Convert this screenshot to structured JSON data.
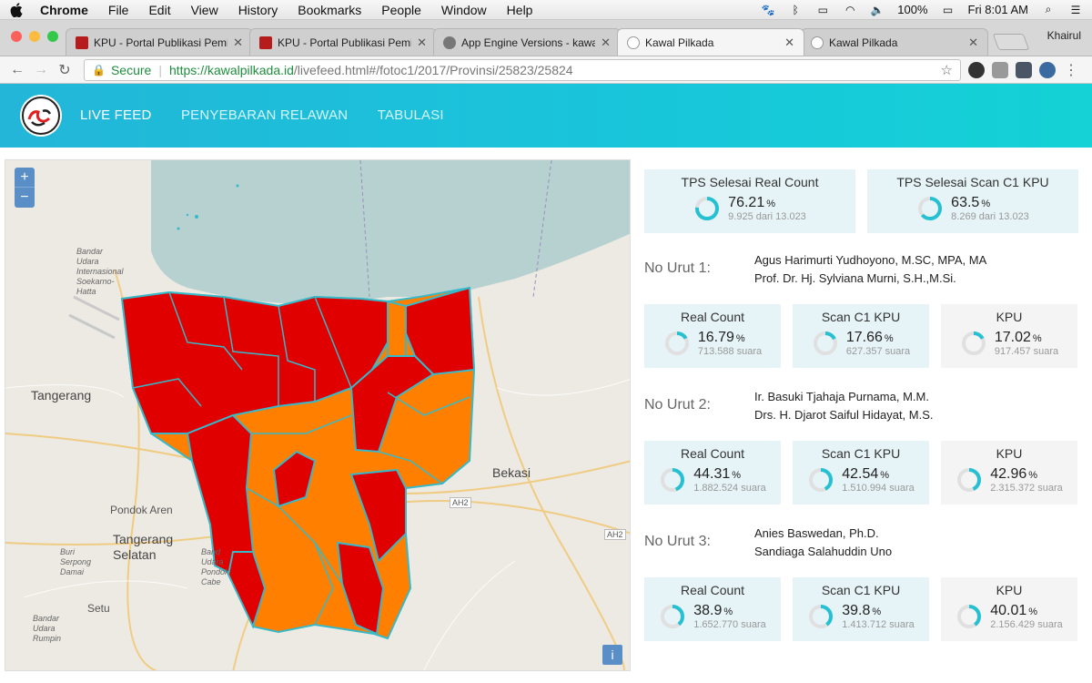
{
  "menubar": {
    "app_name": "Chrome",
    "items": [
      "File",
      "Edit",
      "View",
      "History",
      "Bookmarks",
      "People",
      "Window",
      "Help"
    ],
    "battery": "100%",
    "clock": "Fri 8:01 AM"
  },
  "browser": {
    "tabs": [
      {
        "label": "KPU - Portal Publikasi Pemilih"
      },
      {
        "label": "KPU - Portal Publikasi Pemilih"
      },
      {
        "label": "App Engine Versions - kawalp"
      },
      {
        "label": "Kawal Pilkada"
      },
      {
        "label": "Kawal Pilkada"
      }
    ],
    "profile_name": "Khairul",
    "secure_label": "Secure",
    "url_host": "https://kawalpilkada.id",
    "url_rest": "/livefeed.html#/fotoc1/2017/Provinsi/25823/25824"
  },
  "site": {
    "nav": [
      "LIVE FEED",
      "PENYEBARAN RELAWAN",
      "TABULASI"
    ]
  },
  "map": {
    "zoom_in": "+",
    "zoom_out": "−",
    "info": "i",
    "region_colors": {
      "candidate_1": "#e00000",
      "candidate_2": "#ff8000",
      "border": "#36b9c9",
      "water": "#b7d0d0"
    },
    "labels": {
      "tangerang": "Tangerang",
      "bekasi": "Bekasi",
      "pondok_aren": "Pondok Aren",
      "tangerang_selatan": "Tangerang\nSelatan",
      "airport": "Bandar\nUdara\nInternasional\nSoekarno-\nHatta",
      "setu": "Setu",
      "serpong": "Buri\nSerpong\nDamai",
      "bandara_pondok": "Band\nUdara\nPondok\nCabe",
      "bandara_rumpin": "Bandar\nUdara\nRumpin",
      "road_ah2": "AH2",
      "road_ah2_b": "AH2"
    }
  },
  "summary": {
    "real_count": {
      "title": "TPS Selesai Real Count",
      "value": "76.21",
      "unit": "%",
      "sub": "9.925 dari 13.023",
      "fraction": 0.7621
    },
    "scan_c1": {
      "title": "TPS Selesai Scan C1 KPU",
      "value": "63.5",
      "unit": "%",
      "sub": "8.269 dari 13.023",
      "fraction": 0.635
    }
  },
  "candidates": [
    {
      "no_label": "No Urut 1:",
      "names": [
        "Agus Harimurti Yudhoyono, M.SC, MPA, MA",
        "Prof. Dr. Hj. Sylviana Murni, S.H.,M.Si."
      ],
      "stats": [
        {
          "title": "Real Count",
          "value": "16.79",
          "unit": "%",
          "sub": "713.588 suara",
          "fraction": 0.1679
        },
        {
          "title": "Scan C1 KPU",
          "value": "17.66",
          "unit": "%",
          "sub": "627.357 suara",
          "fraction": 0.1766
        },
        {
          "title": "KPU",
          "value": "17.02",
          "unit": "%",
          "sub": "917.457 suara",
          "fraction": 0.1702
        }
      ]
    },
    {
      "no_label": "No Urut 2:",
      "names": [
        "Ir. Basuki Tjahaja Purnama, M.M.",
        "Drs. H. Djarot Saiful Hidayat, M.S."
      ],
      "stats": [
        {
          "title": "Real Count",
          "value": "44.31",
          "unit": "%",
          "sub": "1.882.524 suara",
          "fraction": 0.4431
        },
        {
          "title": "Scan C1 KPU",
          "value": "42.54",
          "unit": "%",
          "sub": "1.510.994 suara",
          "fraction": 0.4254
        },
        {
          "title": "KPU",
          "value": "42.96",
          "unit": "%",
          "sub": "2.315.372 suara",
          "fraction": 0.4296
        }
      ]
    },
    {
      "no_label": "No Urut 3:",
      "names": [
        "Anies Baswedan, Ph.D.",
        "Sandiaga Salahuddin Uno"
      ],
      "stats": [
        {
          "title": "Real Count",
          "value": "38.9",
          "unit": "%",
          "sub": "1.652.770 suara",
          "fraction": 0.389
        },
        {
          "title": "Scan C1 KPU",
          "value": "39.8",
          "unit": "%",
          "sub": "1.413.712 suara",
          "fraction": 0.398
        },
        {
          "title": "KPU",
          "value": "40.01",
          "unit": "%",
          "sub": "2.156.429 suara",
          "fraction": 0.4001
        }
      ]
    }
  ],
  "colors": {
    "ring": "#26c0d3",
    "ring_track": "#e0e0e0",
    "header": "#1ec0da"
  }
}
